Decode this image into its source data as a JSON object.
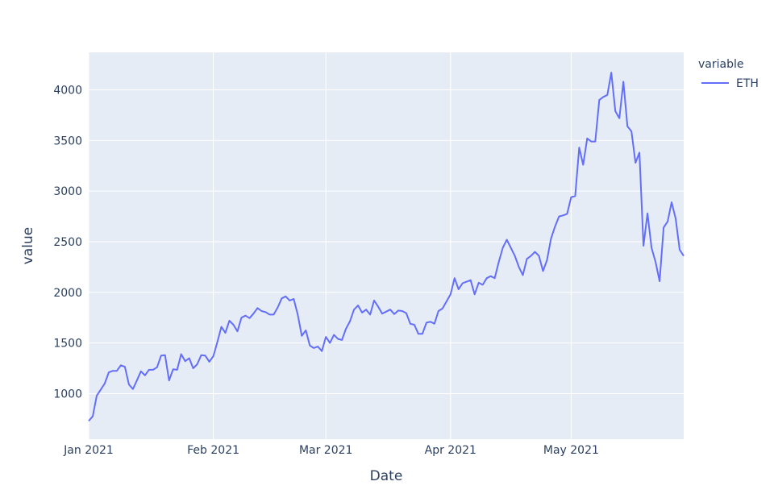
{
  "chart_data": {
    "type": "line",
    "xlabel": "Date",
    "ylabel": "value",
    "xlim": [
      "2021-01-01",
      "2021-05-29"
    ],
    "ylim": [
      550,
      4370
    ],
    "x_ticks": [
      {
        "date": "2021-01-01",
        "label": "Jan 2021"
      },
      {
        "date": "2021-02-01",
        "label": "Feb 2021"
      },
      {
        "date": "2021-03-01",
        "label": "Mar 2021"
      },
      {
        "date": "2021-04-01",
        "label": "Apr 2021"
      },
      {
        "date": "2021-05-01",
        "label": "May 2021"
      }
    ],
    "y_ticks": [
      1000,
      1500,
      2000,
      2500,
      3000,
      3500,
      4000
    ],
    "grid": true,
    "legend": {
      "title": "variable",
      "placement": "top-right"
    },
    "colors": {
      "plot_bg": "#e5ecf6",
      "grid": "#ffffff",
      "text": "#2a3f5f"
    },
    "series": [
      {
        "name": "ETH",
        "color": "#636efa",
        "x": [
          "2021-01-01",
          "2021-01-02",
          "2021-01-03",
          "2021-01-04",
          "2021-01-05",
          "2021-01-06",
          "2021-01-07",
          "2021-01-08",
          "2021-01-09",
          "2021-01-10",
          "2021-01-11",
          "2021-01-12",
          "2021-01-13",
          "2021-01-14",
          "2021-01-15",
          "2021-01-16",
          "2021-01-17",
          "2021-01-18",
          "2021-01-19",
          "2021-01-20",
          "2021-01-21",
          "2021-01-22",
          "2021-01-23",
          "2021-01-24",
          "2021-01-25",
          "2021-01-26",
          "2021-01-27",
          "2021-01-28",
          "2021-01-29",
          "2021-01-30",
          "2021-01-31",
          "2021-02-01",
          "2021-02-02",
          "2021-02-03",
          "2021-02-04",
          "2021-02-05",
          "2021-02-06",
          "2021-02-07",
          "2021-02-08",
          "2021-02-09",
          "2021-02-10",
          "2021-02-11",
          "2021-02-12",
          "2021-02-13",
          "2021-02-14",
          "2021-02-15",
          "2021-02-16",
          "2021-02-17",
          "2021-02-18",
          "2021-02-19",
          "2021-02-20",
          "2021-02-21",
          "2021-02-22",
          "2021-02-23",
          "2021-02-24",
          "2021-02-25",
          "2021-02-26",
          "2021-02-27",
          "2021-02-28",
          "2021-03-01",
          "2021-03-02",
          "2021-03-03",
          "2021-03-04",
          "2021-03-05",
          "2021-03-06",
          "2021-03-07",
          "2021-03-08",
          "2021-03-09",
          "2021-03-10",
          "2021-03-11",
          "2021-03-12",
          "2021-03-13",
          "2021-03-14",
          "2021-03-15",
          "2021-03-16",
          "2021-03-17",
          "2021-03-18",
          "2021-03-19",
          "2021-03-20",
          "2021-03-21",
          "2021-03-22",
          "2021-03-23",
          "2021-03-24",
          "2021-03-25",
          "2021-03-26",
          "2021-03-27",
          "2021-03-28",
          "2021-03-29",
          "2021-03-30",
          "2021-03-31",
          "2021-04-01",
          "2021-04-02",
          "2021-04-03",
          "2021-04-04",
          "2021-04-05",
          "2021-04-06",
          "2021-04-07",
          "2021-04-08",
          "2021-04-09",
          "2021-04-10",
          "2021-04-11",
          "2021-04-12",
          "2021-04-13",
          "2021-04-14",
          "2021-04-15",
          "2021-04-16",
          "2021-04-17",
          "2021-04-18",
          "2021-04-19",
          "2021-04-20",
          "2021-04-21",
          "2021-04-22",
          "2021-04-23",
          "2021-04-24",
          "2021-04-25",
          "2021-04-26",
          "2021-04-27",
          "2021-04-28",
          "2021-04-29",
          "2021-04-30",
          "2021-05-01",
          "2021-05-02",
          "2021-05-03",
          "2021-05-04",
          "2021-05-05",
          "2021-05-06",
          "2021-05-07",
          "2021-05-08",
          "2021-05-09",
          "2021-05-10",
          "2021-05-11",
          "2021-05-12",
          "2021-05-13",
          "2021-05-14",
          "2021-05-15",
          "2021-05-16",
          "2021-05-17",
          "2021-05-18",
          "2021-05-19",
          "2021-05-20",
          "2021-05-21",
          "2021-05-22",
          "2021-05-23",
          "2021-05-24",
          "2021-05-25",
          "2021-05-26",
          "2021-05-27",
          "2021-05-28",
          "2021-05-29"
        ],
        "values": [
          730,
          775,
          980,
          1040,
          1100,
          1210,
          1225,
          1225,
          1280,
          1265,
          1090,
          1045,
          1130,
          1220,
          1180,
          1235,
          1235,
          1260,
          1375,
          1380,
          1130,
          1240,
          1235,
          1390,
          1320,
          1350,
          1250,
          1290,
          1380,
          1375,
          1315,
          1370,
          1510,
          1660,
          1600,
          1720,
          1680,
          1615,
          1750,
          1770,
          1745,
          1790,
          1845,
          1815,
          1805,
          1780,
          1780,
          1850,
          1940,
          1960,
          1920,
          1935,
          1780,
          1570,
          1625,
          1475,
          1450,
          1465,
          1420,
          1560,
          1500,
          1580,
          1540,
          1530,
          1640,
          1715,
          1830,
          1870,
          1800,
          1830,
          1780,
          1920,
          1860,
          1790,
          1810,
          1830,
          1785,
          1820,
          1815,
          1795,
          1690,
          1680,
          1590,
          1590,
          1700,
          1710,
          1690,
          1815,
          1840,
          1910,
          1980,
          2140,
          2030,
          2090,
          2105,
          2120,
          1980,
          2095,
          2075,
          2140,
          2160,
          2140,
          2300,
          2440,
          2520,
          2440,
          2360,
          2250,
          2170,
          2330,
          2360,
          2400,
          2360,
          2210,
          2320,
          2530,
          2650,
          2750,
          2760,
          2775,
          2940,
          2950,
          3430,
          3260,
          3520,
          3490,
          3490,
          3900,
          3930,
          3950,
          4170,
          3790,
          3720,
          4080,
          3640,
          3590,
          3280,
          3380,
          2460,
          2780,
          2440,
          2300,
          2110,
          2640,
          2700,
          2890,
          2730,
          2420,
          2360
        ]
      }
    ]
  }
}
